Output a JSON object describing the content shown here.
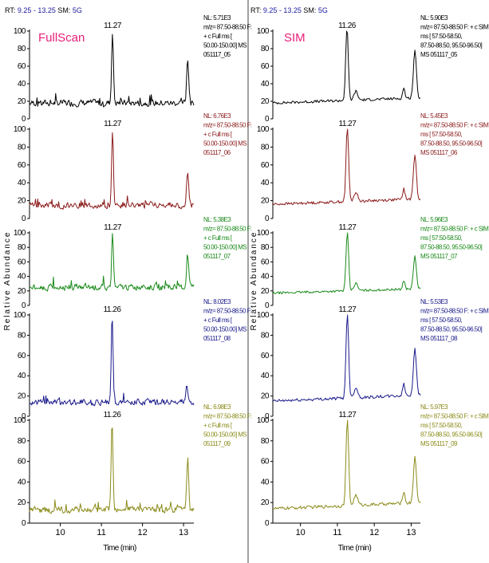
{
  "chart_data": {
    "type": "line",
    "header": {
      "rt_prefix": "RT:",
      "rt_range": "9.25 - 13.25",
      "sm_prefix": "SM:",
      "sm_value": "5G"
    },
    "ylabel": "Relative Abundance",
    "xlabel": "Time (min)",
    "xlim": [
      9.25,
      13.25
    ],
    "ylim": [
      0,
      100
    ],
    "x_ticks": [
      "10",
      "11",
      "12",
      "13"
    ],
    "y_ticks": [
      "0",
      "20",
      "40",
      "60",
      "80",
      "100"
    ],
    "columns": [
      {
        "title": "FullScan",
        "title_color": "#e8207a",
        "panels": [
          {
            "peak_label": "11.27",
            "peak_rt": 11.27,
            "color": "#000000",
            "info": [
              "NL: 5.71E3",
              "m/z= 87.50-88.50 F:",
              "+ c Full ms [",
              "50.00-150.00] MS",
              "051117_05"
            ],
            "baseline": 18,
            "noise": 6,
            "main_peak": 100,
            "end_peak_rt": 13.1,
            "end_peak": 70
          },
          {
            "peak_label": "11.27",
            "peak_rt": 11.27,
            "color": "#8b1a1a",
            "info": [
              "NL: 6.76E3",
              "m/z= 87.50-88.50 F:",
              "+ c Full ms [",
              "50.00-150.00] MS",
              "051117_06"
            ],
            "baseline": 15,
            "noise": 6,
            "main_peak": 100,
            "end_peak_rt": 13.1,
            "end_peak": 50
          },
          {
            "peak_label": "11.27",
            "peak_rt": 11.27,
            "color": "#1a8a1a",
            "info": [
              "NL: 5.38E3",
              "m/z= 87.50-88.50 F:",
              "+ c Full ms [",
              "50.00-150.00] MS",
              "051117_07"
            ],
            "baseline": 25,
            "noise": 7,
            "main_peak": 100,
            "end_peak_rt": 13.1,
            "end_peak": 72
          },
          {
            "peak_label": "11.26",
            "peak_rt": 11.26,
            "color": "#1a1a8b",
            "info": [
              "NL: 8.02E3",
              "m/z= 87.50-88.50 F:",
              "+ c Full ms [",
              "50.00-150.00] MS",
              "051117_08"
            ],
            "baseline": 14,
            "noise": 5,
            "main_peak": 100,
            "end_peak_rt": 13.08,
            "end_peak": 32
          },
          {
            "peak_label": "11.26",
            "peak_rt": 11.26,
            "color": "#8b8b1a",
            "info": [
              "NL: 6.98E3",
              "m/z= 87.50-88.50 F:",
              "+ c Full ms [",
              "50.00-150.00] MS",
              "051117_09"
            ],
            "baseline": 13,
            "noise": 5,
            "main_peak": 100,
            "end_peak_rt": 13.1,
            "end_peak": 63
          }
        ]
      },
      {
        "title": "SIM",
        "title_color": "#e8207a",
        "panels": [
          {
            "peak_label": "11.26",
            "peak_rt": 11.26,
            "color": "#000000",
            "info": [
              "NL: 5.90E3",
              "m/z= 87.50-88.50 F: + c SIM",
              "ms [ 57.50-58.50,",
              "87.50-88.50, 95.50-96.50]",
              "MS 051117_05"
            ],
            "baseline": 18,
            "noise": 1.5,
            "main_peak": 100,
            "end_peak_rt": 13.1,
            "end_peak": 72
          },
          {
            "peak_label": "11.27",
            "peak_rt": 11.27,
            "color": "#8b1a1a",
            "info": [
              "NL: 5.45E3",
              "m/z= 87.50-88.50 F: + c SIM",
              "ms [ 57.50-58.50,",
              "87.50-88.50, 95.50-96.50]",
              "MS 051117_06"
            ],
            "baseline": 16,
            "noise": 1.5,
            "main_peak": 100,
            "end_peak_rt": 13.1,
            "end_peak": 66
          },
          {
            "peak_label": "11.27",
            "peak_rt": 11.27,
            "color": "#1a8a1a",
            "info": [
              "NL: 5.96E3",
              "m/z= 87.50-88.50 F: + c SIM",
              "ms [ 57.50-58.50,",
              "87.50-88.50, 95.50-96.50]",
              "MS 051117_07"
            ],
            "baseline": 17,
            "noise": 1.5,
            "main_peak": 100,
            "end_peak_rt": 13.1,
            "end_peak": 62
          },
          {
            "peak_label": "11.27",
            "peak_rt": 11.27,
            "color": "#1a1a8b",
            "info": [
              "NL: 5.53E3",
              "m/z= 87.50-88.50 F: + c SIM",
              "ms [ 57.50-58.50,",
              "87.50-88.50, 95.50-96.50]",
              "MS 051117_08"
            ],
            "baseline": 15,
            "noise": 1.5,
            "main_peak": 100,
            "end_peak_rt": 13.1,
            "end_peak": 62
          },
          {
            "peak_label": "11.27",
            "peak_rt": 11.27,
            "color": "#8b8b1a",
            "info": [
              "NL: 5.97E3",
              "m/z= 87.50-88.50 F: + c SIM",
              "ms [ 57.50-58.50,",
              "87.50-88.50, 95.50-96.50]",
              "MS 051117_09"
            ],
            "baseline": 14,
            "noise": 1.5,
            "main_peak": 100,
            "end_peak_rt": 13.1,
            "end_peak": 58
          }
        ]
      }
    ]
  }
}
